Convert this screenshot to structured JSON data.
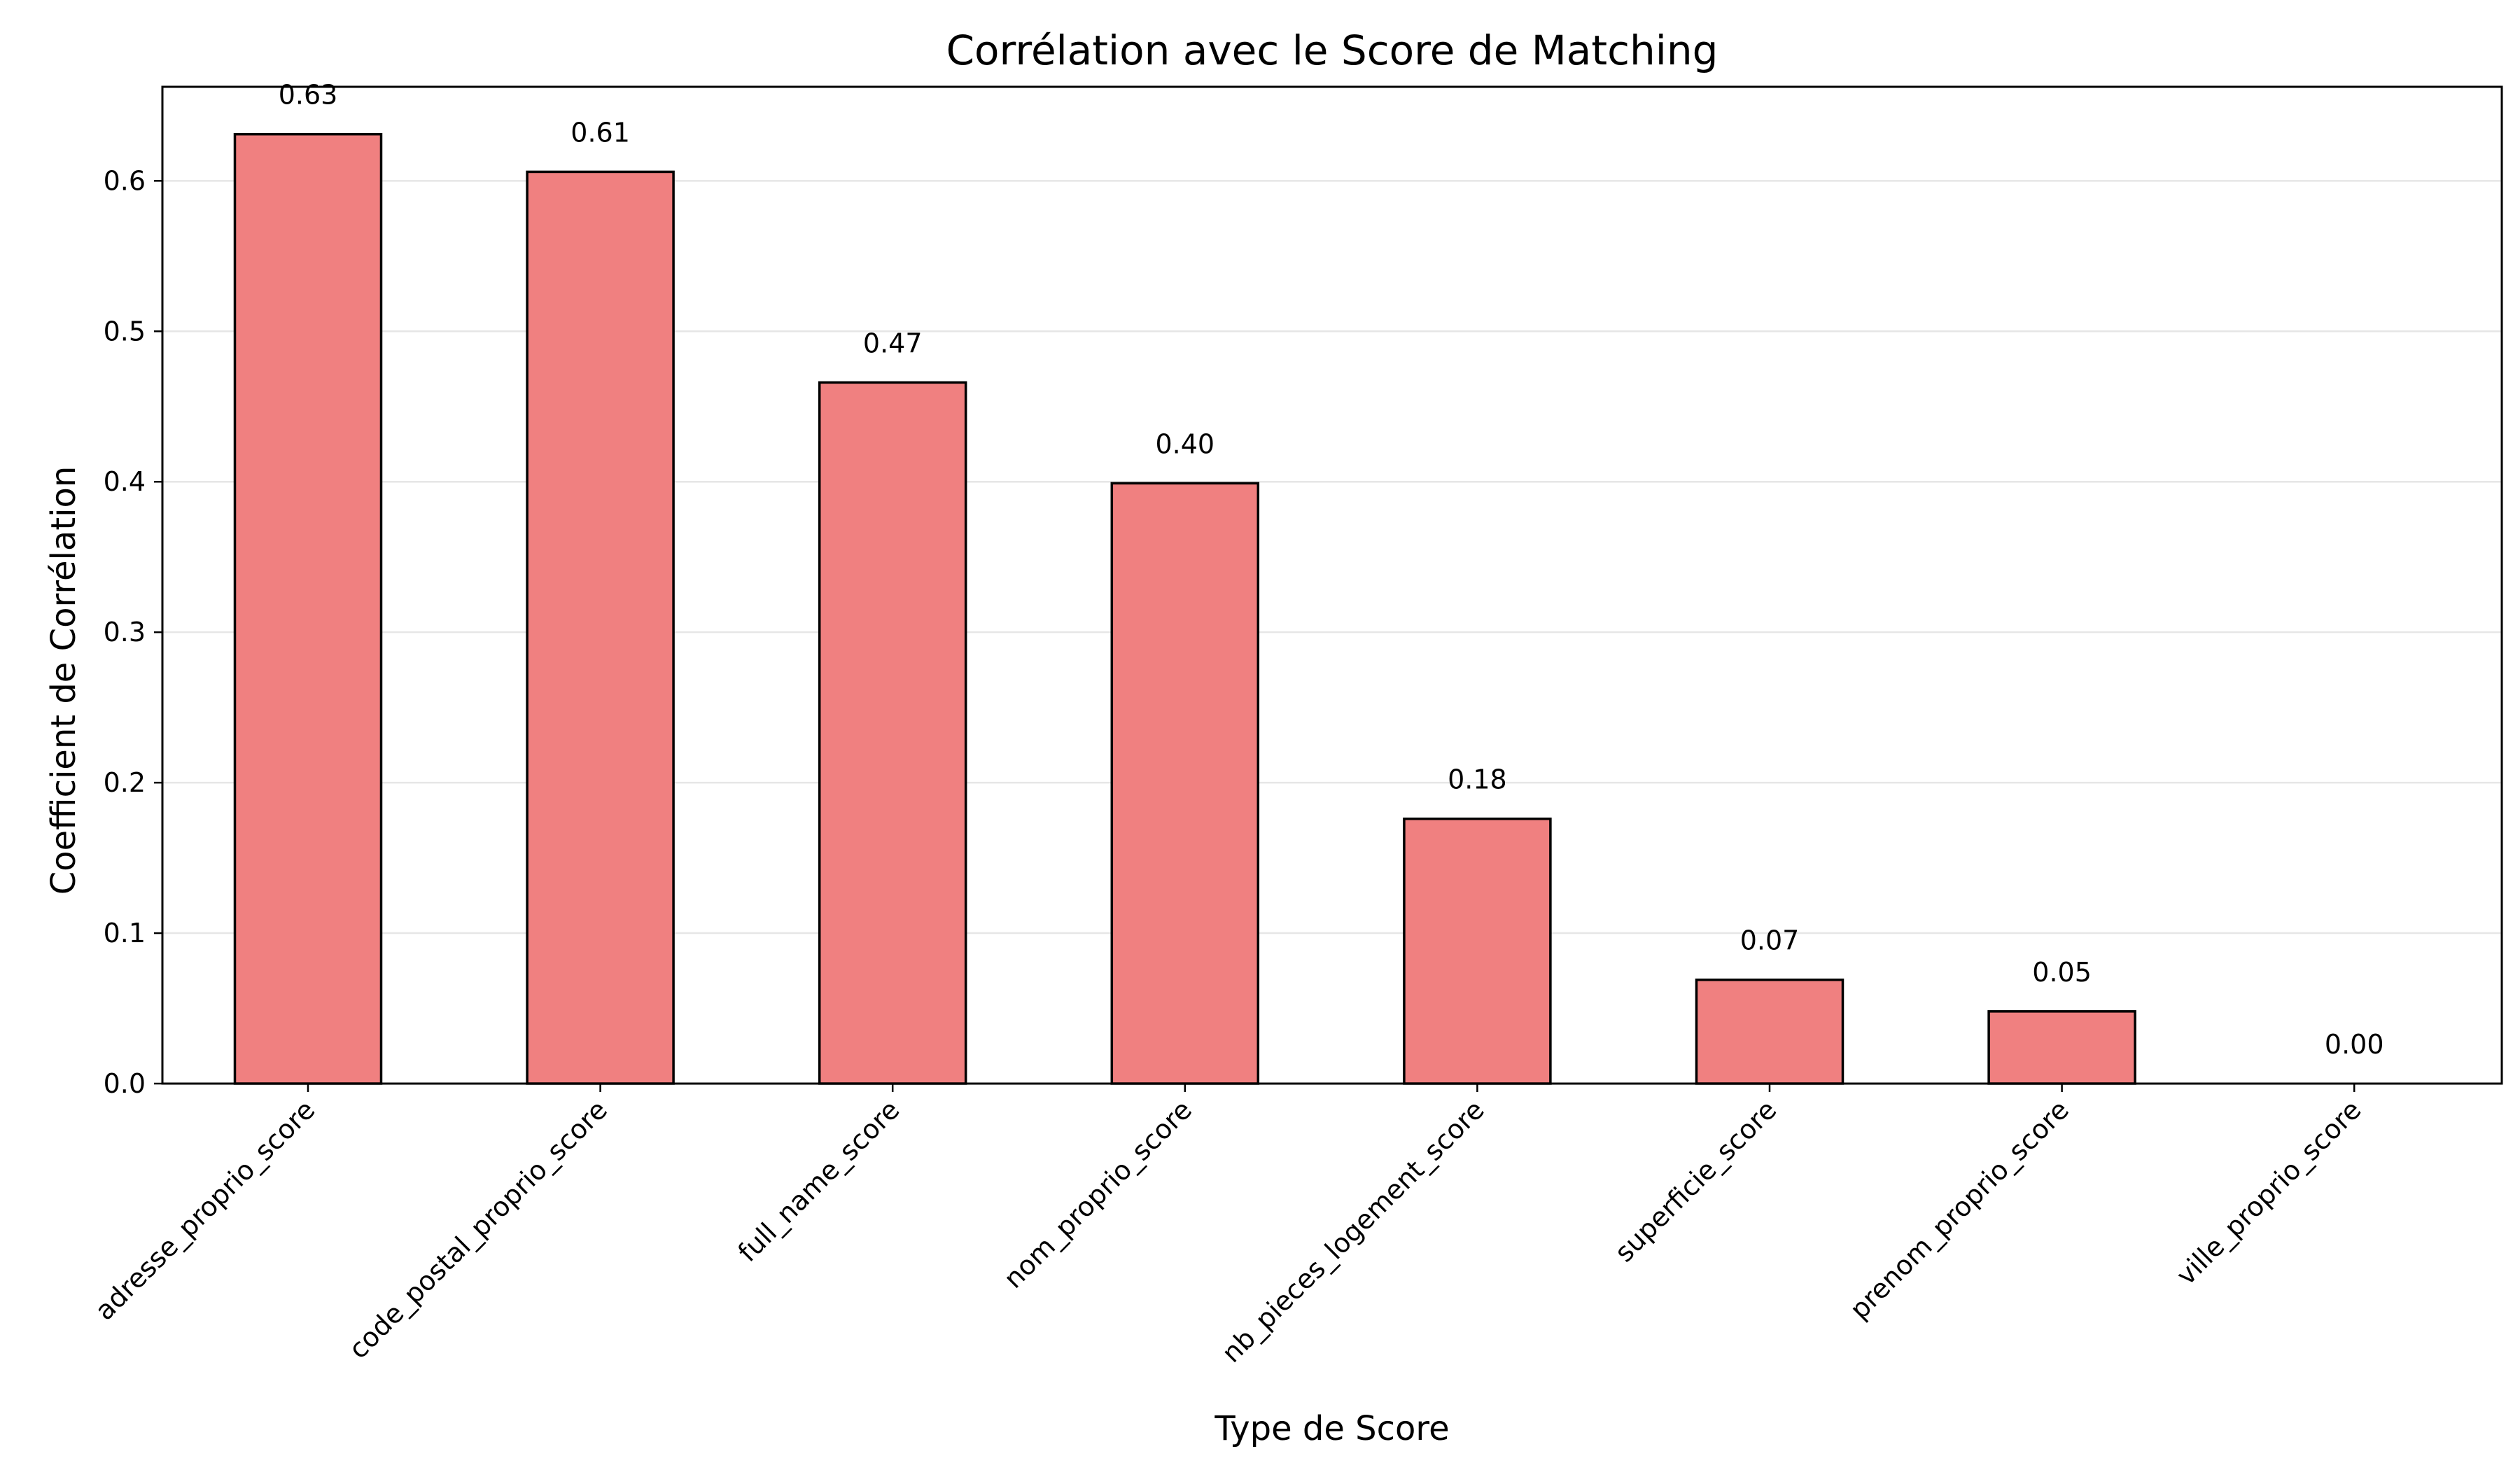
{
  "chart_data": {
    "type": "bar",
    "title": "Corrélation avec le Score de Matching",
    "xlabel": "Type de Score",
    "ylabel": "Coefficient de Corrélation",
    "categories": [
      "adresse_proprio_score",
      "code_postal_proprio_score",
      "full_name_score",
      "nom_proprio_score",
      "nb_pieces_logement_score",
      "superficie_score",
      "prenom_proprio_score",
      "ville_proprio_score"
    ],
    "values": [
      0.631,
      0.606,
      0.466,
      0.399,
      0.176,
      0.069,
      0.048,
      0.0
    ],
    "value_labels": [
      "0.63",
      "0.61",
      "0.47",
      "0.40",
      "0.18",
      "0.07",
      "0.05",
      "0.00"
    ],
    "yticks": [
      0.0,
      0.1,
      0.2,
      0.3,
      0.4,
      0.5,
      0.6
    ],
    "ytick_labels": [
      "0.0",
      "0.1",
      "0.2",
      "0.3",
      "0.4",
      "0.5",
      "0.6"
    ],
    "ylim": [
      0,
      0.6625
    ],
    "grid": "y",
    "colors": {
      "bar_fill": "#f08080",
      "bar_edge": "#000000",
      "grid": "#e6e6e6"
    }
  }
}
